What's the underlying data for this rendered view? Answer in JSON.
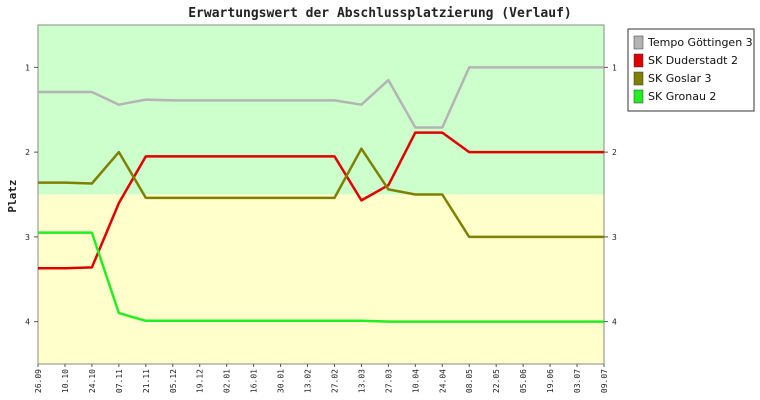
{
  "chart_data": {
    "type": "line",
    "title": "Erwartungswert der Abschlussplatzierung (Verlauf)",
    "ylabel": "Platz",
    "xlabel": "",
    "y_reversed": true,
    "ylim": [
      0.5,
      4.5
    ],
    "yticks": [
      1,
      2,
      3,
      4
    ],
    "grid": false,
    "legend_position": "right",
    "bands": [
      {
        "from": 0.5,
        "to": 2.5,
        "color": "#ccffcc"
      },
      {
        "from": 2.5,
        "to": 4.5,
        "color": "#ffffcc"
      }
    ],
    "categories": [
      "26.09",
      "10.10",
      "24.10",
      "07.11",
      "21.11",
      "05.12",
      "19.12",
      "02.01",
      "16.01",
      "30.01",
      "13.02",
      "27.02",
      "13.03",
      "27.03",
      "10.04",
      "24.04",
      "08.05",
      "22.05",
      "05.06",
      "19.06",
      "03.07",
      "09.07"
    ],
    "series": [
      {
        "name": "Tempo Göttingen 3",
        "color": "#b4b4b4",
        "values": [
          1.29,
          1.29,
          1.29,
          1.44,
          1.38,
          1.39,
          1.39,
          1.39,
          1.39,
          1.39,
          1.39,
          1.39,
          1.44,
          1.15,
          1.71,
          1.71,
          1.0,
          1.0,
          1.0,
          1.0,
          1.0,
          1.0
        ]
      },
      {
        "name": "SK Duderstadt 2",
        "color": "#e00000",
        "values": [
          3.37,
          3.37,
          3.36,
          2.6,
          2.05,
          2.05,
          2.05,
          2.05,
          2.05,
          2.05,
          2.05,
          2.05,
          2.57,
          2.39,
          1.77,
          1.77,
          2.0,
          2.0,
          2.0,
          2.0,
          2.0,
          2.0
        ]
      },
      {
        "name": "SK Goslar 3",
        "color": "#808000",
        "values": [
          2.36,
          2.36,
          2.37,
          2.0,
          2.54,
          2.54,
          2.54,
          2.54,
          2.54,
          2.54,
          2.54,
          2.54,
          1.96,
          2.44,
          2.5,
          2.5,
          3.0,
          3.0,
          3.0,
          3.0,
          3.0,
          3.0
        ]
      },
      {
        "name": "SK Gronau 2",
        "color": "#22ee22",
        "values": [
          2.95,
          2.95,
          2.95,
          3.9,
          3.99,
          3.99,
          3.99,
          3.99,
          3.99,
          3.99,
          3.99,
          3.99,
          3.99,
          4.0,
          4.0,
          4.0,
          4.0,
          4.0,
          4.0,
          4.0,
          4.0,
          4.0
        ]
      }
    ]
  }
}
